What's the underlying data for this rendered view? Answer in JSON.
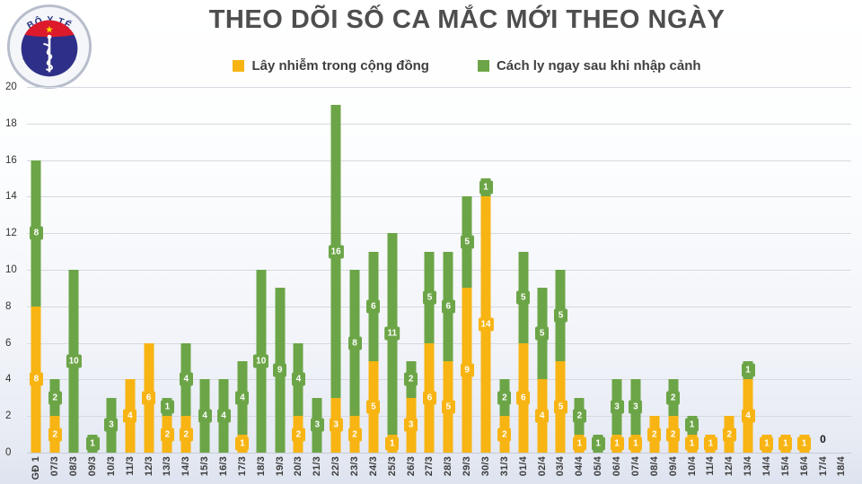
{
  "header": {
    "title": "THEO DÕI SỐ CA MẮC MỚI THEO NGÀY",
    "logo": {
      "top_text": "BỘ Y TẾ",
      "bottom_text": "MINISTRY OF HEALTH"
    }
  },
  "legend": {
    "items": [
      {
        "label": "Lây nhiễm trong cộng đồng",
        "color": "#F7B413"
      },
      {
        "label": "Cách ly ngay sau khi nhập cảnh",
        "color": "#6CA547"
      }
    ]
  },
  "chart_data": {
    "type": "bar",
    "stacked": true,
    "title": "THEO DÕI SỐ CA MẮC MỚI THEO NGÀY",
    "xlabel": "",
    "ylabel": "",
    "ylim": [
      0,
      20
    ],
    "ytick_step": 2,
    "grid": true,
    "legend_position": "top",
    "categories": [
      "GĐ 1",
      "07/3",
      "08/3",
      "09/3",
      "10/3",
      "11/3",
      "12/3",
      "13/3",
      "14/3",
      "15/3",
      "16/3",
      "17/3",
      "18/3",
      "19/3",
      "20/3",
      "21/3",
      "22/3",
      "23/3",
      "24/3",
      "25/3",
      "26/3",
      "27/3",
      "28/3",
      "29/3",
      "30/3",
      "31/3",
      "01/4",
      "02/4",
      "03/4",
      "04/4",
      "05/4",
      "06/4",
      "07/4",
      "08/4",
      "09/4",
      "10/4",
      "11/4",
      "12/4",
      "13/4",
      "14/4",
      "15/4",
      "16/4",
      "17/4",
      "18/4"
    ],
    "series": [
      {
        "name": "Lây nhiễm trong cộng đồng",
        "color": "#F7B413",
        "values": [
          8,
          2,
          0,
          0,
          0,
          4,
          6,
          2,
          2,
          0,
          0,
          1,
          0,
          0,
          2,
          0,
          3,
          2,
          5,
          1,
          3,
          6,
          5,
          9,
          14,
          2,
          6,
          4,
          5,
          1,
          0,
          1,
          1,
          2,
          2,
          1,
          1,
          2,
          4,
          1,
          1,
          1,
          0,
          0
        ]
      },
      {
        "name": "Cách ly ngay sau khi nhập cảnh",
        "color": "#6CA547",
        "values": [
          8,
          2,
          10,
          1,
          3,
          0,
          0,
          1,
          4,
          4,
          4,
          4,
          10,
          9,
          4,
          3,
          16,
          8,
          6,
          11,
          2,
          5,
          6,
          5,
          1,
          2,
          5,
          5,
          5,
          2,
          1,
          3,
          3,
          0,
          2,
          1,
          0,
          0,
          1,
          0,
          0,
          0,
          0,
          0
        ]
      }
    ],
    "annotations": [
      {
        "category": "17/4",
        "text": "0"
      }
    ]
  }
}
